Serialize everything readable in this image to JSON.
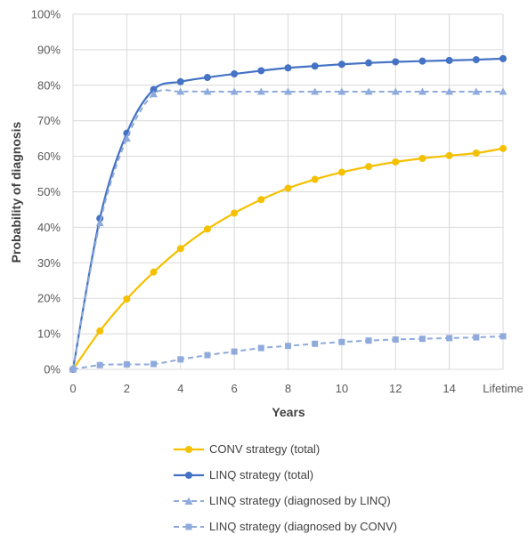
{
  "chart_data": {
    "type": "line",
    "xlabel": "Years",
    "ylabel": "Probability of diagnosis",
    "xlim": [
      0,
      16
    ],
    "ylim": [
      0,
      100
    ],
    "x_ticks": [
      "0",
      "2",
      "4",
      "6",
      "8",
      "10",
      "12",
      "14",
      "Lifetime"
    ],
    "y_ticks": [
      "0%",
      "10%",
      "20%",
      "30%",
      "40%",
      "50%",
      "60%",
      "70%",
      "80%",
      "90%",
      "100%"
    ],
    "grid": true,
    "legend_position": "bottom",
    "x": [
      0,
      1,
      2,
      3,
      4,
      5,
      6,
      7,
      8,
      9,
      10,
      11,
      12,
      13,
      14,
      15,
      16
    ],
    "series": [
      {
        "name": "CONV strategy (total)",
        "color": "#f5c000",
        "marker": "circle",
        "line": "solid",
        "values": [
          0,
          10.8,
          19.8,
          27.4,
          34.0,
          39.5,
          44.0,
          47.8,
          51.0,
          53.5,
          55.5,
          57.1,
          58.4,
          59.4,
          60.2,
          60.9,
          62.2
        ]
      },
      {
        "name": "LINQ strategy (total)",
        "color": "#4472c4",
        "marker": "circle",
        "line": "solid",
        "values": [
          0,
          42.5,
          66.5,
          78.8,
          81.0,
          82.2,
          83.2,
          84.1,
          84.9,
          85.4,
          85.9,
          86.3,
          86.6,
          86.8,
          87.0,
          87.2,
          87.5
        ]
      },
      {
        "name": "LINQ strategy (diagnosed by LINQ)",
        "color": "#8faadc",
        "marker": "triangle",
        "line": "dashed",
        "values": [
          0,
          41.2,
          65.0,
          77.5,
          78.2,
          78.2,
          78.2,
          78.2,
          78.2,
          78.2,
          78.2,
          78.2,
          78.2,
          78.2,
          78.2,
          78.2,
          78.2
        ]
      },
      {
        "name": "LINQ strategy (diagnosed by CONV)",
        "color": "#8faadc",
        "marker": "square",
        "line": "dashed",
        "values": [
          0,
          1.2,
          1.4,
          1.5,
          2.8,
          4.0,
          5.0,
          6.0,
          6.6,
          7.2,
          7.7,
          8.1,
          8.4,
          8.6,
          8.8,
          9.0,
          9.3
        ]
      }
    ]
  }
}
